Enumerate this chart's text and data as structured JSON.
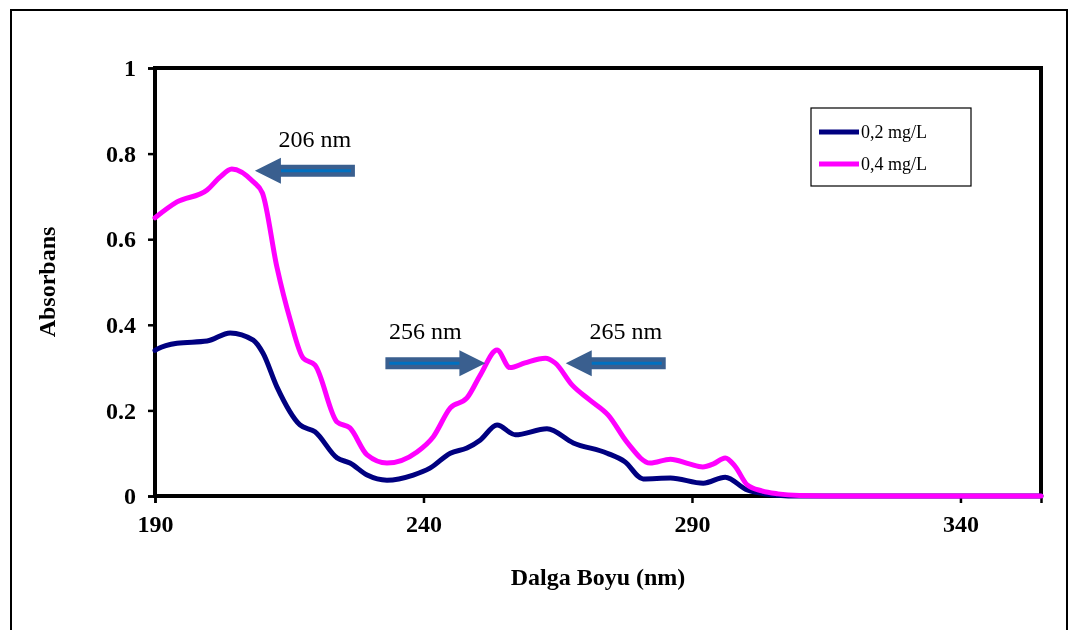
{
  "chart_data": {
    "type": "line",
    "xlabel": "Dalga Boyu (nm)",
    "ylabel": "Absorbans",
    "xlim": [
      190,
      355
    ],
    "xticks": [
      190,
      240,
      290,
      340
    ],
    "ylim": [
      0,
      1
    ],
    "yticks": [
      0,
      0.2,
      0.4,
      0.6,
      0.8,
      1
    ],
    "grid": false,
    "legend": "top right",
    "marker": "none",
    "line_style": "solid",
    "series": [
      {
        "name": "0,2 mg/L",
        "color": "#000080",
        "x": [
          190,
          190.4,
          194.1,
          199.7,
          204,
          208.3,
          210.1,
          212.7,
          217,
          219.8,
          223.9,
          226.3,
          229.5,
          233.2,
          238.1,
          241.2,
          245,
          248.1,
          250.6,
          253.7,
          257.1,
          263,
          267.9,
          274.2,
          277.5,
          280.9,
          286,
          292.1,
          296.2,
          300.3,
          305.9,
          310,
          320,
          355
        ],
        "values": [
          0.34,
          0.343,
          0.357,
          0.362,
          0.381,
          0.364,
          0.334,
          0.255,
          0.166,
          0.15,
          0.089,
          0.077,
          0.049,
          0.037,
          0.049,
          0.065,
          0.1,
          0.112,
          0.131,
          0.166,
          0.143,
          0.157,
          0.124,
          0.1,
          0.08,
          0.04,
          0.042,
          0.03,
          0.044,
          0.014,
          0.002,
          0,
          0,
          0
        ]
      },
      {
        "name": "0,4 mg/L",
        "color": "#ff00ff",
        "x": [
          190,
          194.1,
          199.7,
          202.1,
          204.3,
          208.3,
          210,
          212.7,
          215.2,
          217.6,
          219.8,
          223.9,
          226.3,
          229.5,
          233.2,
          238.8,
          241.8,
          245,
          248.1,
          250.6,
          253.7,
          256.1,
          258.9,
          262.7,
          264.5,
          267.7,
          271,
          274.4,
          278,
          282.2,
          286,
          289.5,
          292,
          294,
          296.2,
          298,
          300.3,
          303,
          306,
          310,
          315,
          355
        ],
        "values": [
          0.65,
          0.687,
          0.715,
          0.745,
          0.764,
          0.734,
          0.708,
          0.535,
          0.411,
          0.322,
          0.306,
          0.173,
          0.159,
          0.096,
          0.077,
          0.103,
          0.138,
          0.206,
          0.229,
          0.283,
          0.341,
          0.3,
          0.311,
          0.322,
          0.311,
          0.259,
          0.224,
          0.189,
          0.124,
          0.077,
          0.086,
          0.075,
          0.068,
          0.075,
          0.089,
          0.07,
          0.026,
          0.012,
          0.005,
          0.001,
          0,
          0
        ]
      }
    ],
    "annotations": [
      {
        "text": "206 nm",
        "x": 206,
        "y": 0.76
      },
      {
        "text": "256 nm",
        "x": 256,
        "y": 0.31
      },
      {
        "text": "265 nm",
        "x": 265,
        "y": 0.31
      }
    ]
  }
}
